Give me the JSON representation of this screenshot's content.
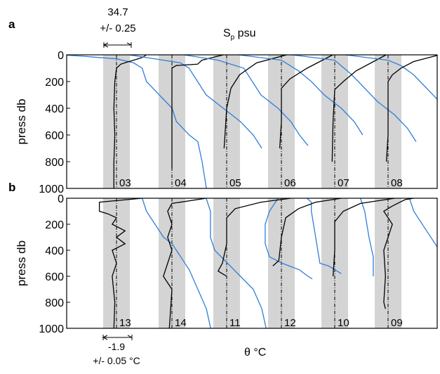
{
  "colors": {
    "salinity": "#2f7fd8",
    "temperature": "#000000",
    "band": "#d4d4d4",
    "axis": "#000000"
  },
  "top_annotation": {
    "value": "34.7",
    "tolerance": "+/- 0.25",
    "series_label_main": "S",
    "series_label_sub": "p",
    "series_label_unit": " psu"
  },
  "bottom_annotation": {
    "value": "-1.9",
    "tolerance": "+/- 0.05 °C",
    "axis_label": "θ °C"
  },
  "chart_data": [
    {
      "type": "line",
      "panel_label": "a",
      "ylabel": "press db",
      "ylim": [
        1000,
        0
      ],
      "yticks": [
        0,
        200,
        400,
        600,
        800,
        1000
      ],
      "grid": false,
      "stations": [
        {
          "label": "03",
          "temperature": [
            [
              -1.55,
              0
            ],
            [
              -1.6,
              20
            ],
            [
              -1.7,
              40
            ],
            [
              -1.78,
              55
            ],
            [
              -1.85,
              70
            ],
            [
              -1.9,
              100
            ],
            [
              -1.92,
              200
            ],
            [
              -1.93,
              400
            ],
            [
              -1.92,
              600
            ],
            [
              -1.93,
              800
            ],
            [
              -1.93,
              1000
            ]
          ],
          "salinity": [
            [
              -2.55,
              0
            ],
            [
              -2.3,
              10
            ],
            [
              -1.9,
              30
            ],
            [
              -1.7,
              60
            ],
            [
              -1.6,
              100
            ],
            [
              -1.55,
              200
            ],
            [
              -1.4,
              300
            ],
            [
              -1.25,
              400
            ],
            [
              -1.2,
              500
            ],
            [
              -1.05,
              600
            ],
            [
              -0.95,
              650
            ],
            [
              -0.9,
              800
            ],
            [
              -0.85,
              1000
            ]
          ]
        },
        {
          "label": "04",
          "temperature": [
            [
              -1.3,
              0
            ],
            [
              -1.55,
              40
            ],
            [
              -1.6,
              70
            ],
            [
              -1.85,
              80
            ],
            [
              -1.9,
              100
            ],
            [
              -1.9,
              300
            ],
            [
              -1.9,
              500
            ],
            [
              -1.9,
              700
            ],
            [
              -1.9,
              850
            ]
          ],
          "salinity": [
            [
              -2.4,
              0
            ],
            [
              -2.0,
              40
            ],
            [
              -1.8,
              60
            ],
            [
              -1.7,
              100
            ],
            [
              -1.6,
              200
            ],
            [
              -1.5,
              300
            ],
            [
              -1.3,
              400
            ],
            [
              -1.1,
              500
            ],
            [
              -0.95,
              600
            ],
            [
              -0.85,
              700
            ]
          ]
        },
        {
          "label": "05",
          "temperature": [
            [
              -1.2,
              0
            ],
            [
              -1.55,
              60
            ],
            [
              -1.75,
              150
            ],
            [
              -1.85,
              250
            ],
            [
              -1.9,
              400
            ],
            [
              -1.92,
              600
            ],
            [
              -1.93,
              700
            ]
          ],
          "salinity": [
            [
              -2.4,
              0
            ],
            [
              -2.0,
              40
            ],
            [
              -1.7,
              100
            ],
            [
              -1.6,
              200
            ],
            [
              -1.5,
              300
            ],
            [
              -1.3,
              400
            ],
            [
              -1.15,
              500
            ],
            [
              -1.05,
              600
            ],
            [
              -0.95,
              680
            ]
          ]
        },
        {
          "label": "06",
          "temperature": [
            [
              -1.3,
              0
            ],
            [
              -1.6,
              100
            ],
            [
              -1.8,
              180
            ],
            [
              -1.9,
              250
            ],
            [
              -1.9,
              500
            ],
            [
              -1.92,
              700
            ]
          ],
          "salinity": [
            [
              -2.4,
              0
            ],
            [
              -1.9,
              40
            ],
            [
              -1.7,
              120
            ],
            [
              -1.55,
              200
            ],
            [
              -1.4,
              300
            ],
            [
              -1.2,
              400
            ],
            [
              -1.05,
              500
            ],
            [
              -0.95,
              600
            ]
          ]
        },
        {
          "label": "07",
          "temperature": [
            [
              -1.3,
              0
            ],
            [
              -1.65,
              120
            ],
            [
              -1.8,
              200
            ],
            [
              -1.9,
              260
            ],
            [
              -1.92,
              500
            ],
            [
              -1.93,
              800
            ]
          ],
          "salinity": [
            [
              -2.4,
              0
            ],
            [
              -1.9,
              40
            ],
            [
              -1.7,
              150
            ],
            [
              -1.55,
              250
            ],
            [
              -1.4,
              350
            ],
            [
              -1.2,
              450
            ],
            [
              -1.05,
              550
            ],
            [
              -0.95,
              650
            ]
          ]
        },
        {
          "label": "08",
          "temperature": [
            [
              -1.3,
              0
            ],
            [
              -1.6,
              50
            ],
            [
              -1.75,
              100
            ],
            [
              -1.85,
              150
            ],
            [
              -1.9,
              200
            ],
            [
              -1.9,
              400
            ],
            [
              -1.9,
              600
            ],
            [
              -1.92,
              800
            ]
          ],
          "salinity": [
            [
              -2.4,
              0
            ],
            [
              -1.9,
              40
            ],
            [
              -1.75,
              80
            ],
            [
              -1.6,
              150
            ],
            [
              -1.45,
              250
            ],
            [
              -1.3,
              350
            ],
            [
              -1.15,
              450
            ],
            [
              -1.05,
              600
            ],
            [
              -0.95,
              800
            ]
          ]
        }
      ]
    },
    {
      "type": "line",
      "panel_label": "b",
      "ylabel": "press db",
      "ylim": [
        1000,
        0
      ],
      "yticks": [
        0,
        200,
        400,
        600,
        800,
        1000
      ],
      "grid": false,
      "stations": [
        {
          "label": "13",
          "temperature": [
            [
              -1.6,
              0
            ],
            [
              -2.1,
              30
            ],
            [
              -2.1,
              100
            ],
            [
              -2.0,
              120
            ],
            [
              -1.9,
              150
            ],
            [
              -1.95,
              200
            ],
            [
              -1.8,
              250
            ],
            [
              -1.9,
              300
            ],
            [
              -1.8,
              350
            ],
            [
              -1.95,
              400
            ],
            [
              -1.9,
              500
            ],
            [
              -1.95,
              600
            ],
            [
              -1.92,
              800
            ],
            [
              -1.93,
              1000
            ]
          ],
          "salinity": [
            [
              -1.6,
              0
            ],
            [
              -1.55,
              100
            ],
            [
              -1.45,
              200
            ],
            [
              -1.35,
              300
            ],
            [
              -1.25,
              350
            ],
            [
              -1.15,
              450
            ],
            [
              -1.05,
              550
            ],
            [
              -0.95,
              700
            ],
            [
              -0.85,
              850
            ],
            [
              -0.8,
              1000
            ]
          ]
        },
        {
          "label": "14",
          "temperature": [
            [
              -1.5,
              0
            ],
            [
              -1.9,
              40
            ],
            [
              -1.95,
              100
            ],
            [
              -1.9,
              200
            ],
            [
              -1.95,
              300
            ],
            [
              -1.9,
              400
            ],
            [
              -1.95,
              500
            ],
            [
              -2.0,
              600
            ],
            [
              -1.9,
              700
            ],
            [
              -1.93,
              1000
            ]
          ],
          "salinity": [
            [
              -1.5,
              0
            ],
            [
              -1.45,
              100
            ],
            [
              -1.45,
              200
            ],
            [
              -1.45,
              300
            ],
            [
              -1.4,
              400
            ],
            [
              -1.25,
              500
            ],
            [
              -1.1,
              600
            ],
            [
              -0.95,
              700
            ],
            [
              -0.85,
              850
            ],
            [
              -0.8,
              1000
            ]
          ]
        },
        {
          "label": "11",
          "temperature": [
            [
              -1.15,
              0
            ],
            [
              -1.5,
              30
            ],
            [
              -1.8,
              80
            ],
            [
              -1.9,
              150
            ],
            [
              -1.9,
              350
            ],
            [
              -1.95,
              500
            ],
            [
              -2.0,
              560
            ],
            [
              -1.9,
              600
            ]
          ],
          "salinity": [
            [
              -1.3,
              0
            ],
            [
              -1.4,
              100
            ],
            [
              -1.45,
              200
            ],
            [
              -1.45,
              350
            ],
            [
              -1.4,
              450
            ],
            [
              -1.25,
              500
            ],
            [
              -1.05,
              550
            ],
            [
              -0.95,
              600
            ],
            [
              -0.9,
              620
            ]
          ]
        },
        {
          "label": "12",
          "temperature": [
            [
              -1.2,
              0
            ],
            [
              -1.5,
              30
            ],
            [
              -1.7,
              80
            ],
            [
              -1.85,
              150
            ],
            [
              -1.9,
              300
            ],
            [
              -1.93,
              480
            ],
            [
              -2.0,
              520
            ]
          ],
          "salinity": [
            [
              -1.6,
              0
            ],
            [
              -1.55,
              30
            ],
            [
              -1.55,
              100
            ],
            [
              -1.5,
              300
            ],
            [
              -1.45,
              500
            ],
            [
              -1.35,
              520
            ],
            [
              -1.2,
              580
            ]
          ]
        },
        {
          "label": "10",
          "temperature": [
            [
              -1.2,
              0
            ],
            [
              -1.6,
              40
            ],
            [
              -1.8,
              100
            ],
            [
              -1.9,
              180
            ],
            [
              -1.9,
              400
            ],
            [
              -1.92,
              600
            ]
          ],
          "salinity": [
            [
              -1.6,
              0
            ],
            [
              -1.55,
              100
            ],
            [
              -1.5,
              300
            ],
            [
              -1.45,
              450
            ],
            [
              -1.45,
              550
            ],
            [
              -1.45,
              600
            ]
          ]
        },
        {
          "label": "09",
          "temperature": [
            [
              -1.6,
              0
            ],
            [
              -1.7,
              10
            ],
            [
              -1.85,
              60
            ],
            [
              -1.95,
              100
            ],
            [
              -1.85,
              200
            ],
            [
              -1.95,
              400
            ],
            [
              -1.93,
              600
            ],
            [
              -1.95,
              800
            ],
            [
              -1.93,
              850
            ]
          ],
          "salinity": [
            [
              -1.65,
              0
            ],
            [
              -1.6,
              100
            ],
            [
              -1.45,
              250
            ],
            [
              -1.3,
              400
            ],
            [
              -1.15,
              500
            ],
            [
              -1.05,
              600
            ],
            [
              -0.95,
              700
            ],
            [
              -0.85,
              800
            ],
            [
              -0.8,
              830
            ]
          ]
        }
      ]
    }
  ]
}
